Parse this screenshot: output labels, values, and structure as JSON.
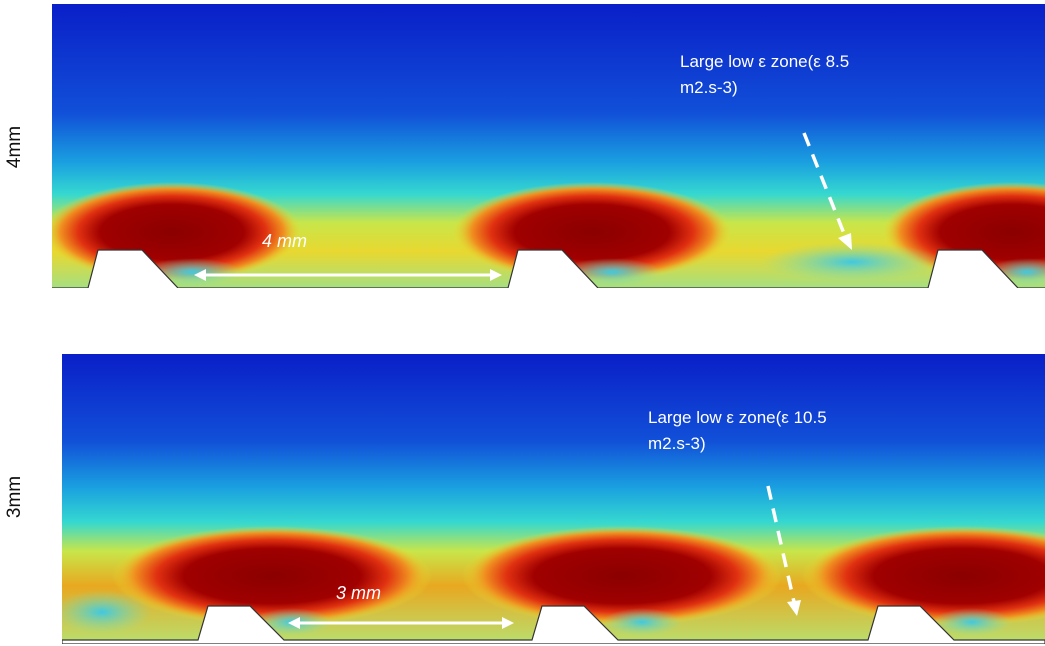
{
  "panels": [
    {
      "side_label": "4mm",
      "annotation_line1": "Large low ε zone(ε  8.5",
      "annotation_line2": "m2.s-3)",
      "dimension_label": "4 mm"
    },
    {
      "side_label": "3mm",
      "annotation_line1": "Large low ε zone(ε  10.5",
      "annotation_line2": "m2.s-3)",
      "dimension_label": "3 mm"
    }
  ],
  "colors": {
    "low": "#0a1fc8",
    "mid_low": "#2fd4d6",
    "mid": "#e8e030",
    "high": "#f08a10",
    "peak": "#8b0000",
    "arrow": "#ffffff"
  }
}
